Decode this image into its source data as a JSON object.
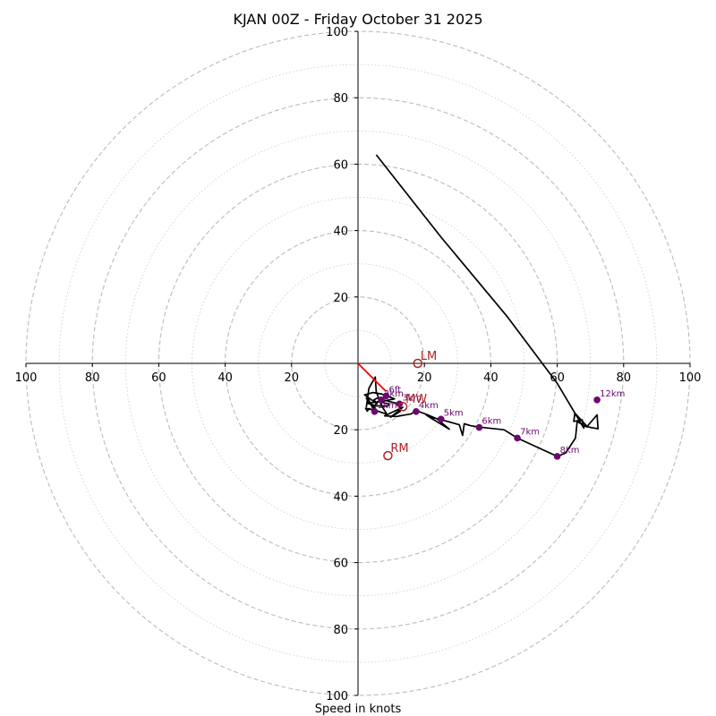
{
  "chart_data": {
    "type": "scatter",
    "title": "KJAN 00Z - Friday October 31 2025",
    "xlabel": "Speed in knots",
    "ylabel": "",
    "xlim": [
      -100,
      100
    ],
    "ylim": [
      -100,
      100
    ],
    "x_ticks": [
      {
        "value": -100,
        "label": "100"
      },
      {
        "value": -80,
        "label": "80"
      },
      {
        "value": -60,
        "label": "60"
      },
      {
        "value": -40,
        "label": "40"
      },
      {
        "value": -20,
        "label": "20"
      },
      {
        "value": 20,
        "label": "20"
      },
      {
        "value": 40,
        "label": "40"
      },
      {
        "value": 60,
        "label": "60"
      },
      {
        "value": 80,
        "label": "80"
      },
      {
        "value": 100,
        "label": "100"
      }
    ],
    "y_ticks": [
      {
        "value": 100,
        "label": "100"
      },
      {
        "value": 80,
        "label": "80"
      },
      {
        "value": 60,
        "label": "60"
      },
      {
        "value": 40,
        "label": "40"
      },
      {
        "value": 20,
        "label": "20"
      },
      {
        "value": -20,
        "label": "20"
      },
      {
        "value": -40,
        "label": "40"
      },
      {
        "value": -60,
        "label": "60"
      },
      {
        "value": -80,
        "label": "80"
      },
      {
        "value": -100,
        "label": "100"
      }
    ],
    "rings_major": [
      20,
      40,
      60,
      80,
      100
    ],
    "rings_minor": [
      10,
      30,
      50,
      70,
      90
    ],
    "grid": true,
    "hodograph": {
      "color": "#000000",
      "points": [
        [
          5.5,
          62.8
        ],
        [
          25,
          38
        ],
        [
          45,
          14
        ],
        [
          60,
          -6
        ],
        [
          68,
          -19.5
        ],
        [
          67.5,
          -17
        ],
        [
          65,
          -17.5
        ],
        [
          65.3,
          -15
        ],
        [
          69,
          -19
        ],
        [
          72,
          -15.5
        ],
        [
          72.3,
          -19.7
        ],
        [
          68.5,
          -19
        ],
        [
          66,
          -17.5
        ],
        [
          65.5,
          -22.5
        ],
        [
          62.5,
          -27
        ],
        [
          60,
          -28
        ],
        [
          48,
          -22.5
        ],
        [
          44,
          -20
        ],
        [
          36.5,
          -19.2
        ],
        [
          34,
          -18.8
        ],
        [
          32,
          -18.2
        ],
        [
          31.5,
          -21.7
        ],
        [
          30.5,
          -18.5
        ],
        [
          27,
          -17.5
        ],
        [
          24.5,
          -16.8
        ],
        [
          23,
          -16.5
        ],
        [
          20.5,
          -15.5
        ],
        [
          22,
          -16.5
        ],
        [
          27.5,
          -19.8
        ],
        [
          23.8,
          -16.7
        ],
        [
          21,
          -15.5
        ],
        [
          17.5,
          -14.2
        ],
        [
          16,
          -15.2
        ],
        [
          11.5,
          -16
        ],
        [
          8,
          -15.8
        ],
        [
          13.5,
          -13.2
        ],
        [
          9.8,
          -16.2
        ],
        [
          12.7,
          -14.5
        ],
        [
          12.5,
          -12.2
        ],
        [
          9.5,
          -11.5
        ],
        [
          7,
          -10.8
        ],
        [
          6.5,
          -10.5
        ],
        [
          5.7,
          -10.5
        ],
        [
          4.8,
          -11
        ],
        [
          5.8,
          -12.2
        ],
        [
          3.8,
          -10.8
        ],
        [
          2,
          -9.5
        ],
        [
          4.5,
          -8.8
        ],
        [
          7,
          -9.2
        ],
        [
          11,
          -10.7
        ],
        [
          6.8,
          -11.5
        ],
        [
          2.8,
          -12
        ],
        [
          5.5,
          -12.8
        ],
        [
          8.8,
          -12.9
        ],
        [
          9.5,
          -12.2
        ],
        [
          5.8,
          -11.5
        ],
        [
          4.8,
          -13.5
        ],
        [
          5.2,
          -13.5
        ],
        [
          3.5,
          -11.9
        ],
        [
          2.5,
          -10.5
        ],
        [
          3,
          -10.5
        ],
        [
          4.8,
          -14.2
        ],
        [
          3.4,
          -13.6
        ],
        [
          2.8,
          -14.4
        ],
        [
          2.3,
          -13.5
        ],
        [
          6,
          -14.4
        ],
        [
          8.7,
          -15.3
        ],
        [
          7.5,
          -13.4
        ],
        [
          5.5,
          -8.6
        ],
        [
          5.2,
          -4.1
        ],
        [
          3.3,
          -7.5
        ],
        [
          2.5,
          -13.2
        ]
      ],
      "height_markers": [
        {
          "label": "12km",
          "x": 72,
          "y": -11
        },
        {
          "label": "8km",
          "x": 60,
          "y": -28
        },
        {
          "label": "7km",
          "x": 48,
          "y": -22.5
        },
        {
          "label": "6km",
          "x": 36.5,
          "y": -19.3
        },
        {
          "label": "5km",
          "x": 25,
          "y": -16.8
        },
        {
          "label": "4km",
          "x": 17.5,
          "y": -14.5
        },
        {
          "label": "3km",
          "x": 12.5,
          "y": -12.2
        },
        {
          "label": "2km",
          "x": 7,
          "y": -11
        },
        {
          "label": "6ft",
          "x": 8.5,
          "y": -9.8
        },
        {
          "label": "1km",
          "x": 5,
          "y": -14.5
        }
      ]
    },
    "storm_motion": [
      {
        "label": "LM",
        "x": 18,
        "y": 0
      },
      {
        "label": "RM",
        "x": 9,
        "y": -27.8
      },
      {
        "label": "MW",
        "x": 13.5,
        "y": -13
      }
    ],
    "shear_vector": {
      "color": "#ff0000",
      "from": [
        0,
        0
      ],
      "to": [
        8.5,
        -8.5
      ]
    },
    "colors": {
      "hodograph": "#000000",
      "height_markers": "#6a0a6e",
      "storm_motion": "#b22222",
      "shear": "#ff0000",
      "grid": "#bbbbbb"
    }
  }
}
